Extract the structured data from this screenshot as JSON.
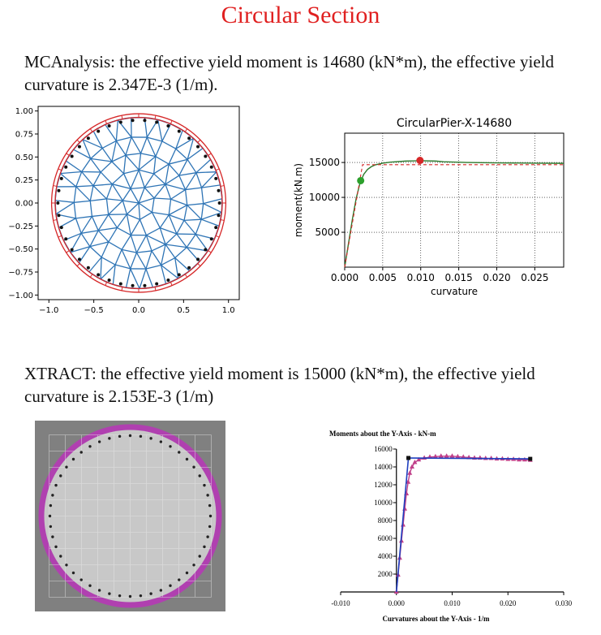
{
  "page_title": "Circular Section",
  "mcanalysis_text": "MCAnalysis: the effective yield moment is 14680 (kN*m), the effective yield curvature is 2.347E-3 (1/m).",
  "xtract_text": "XTRACT: the effective yield moment is 15000 (kN*m), the effective yield curvature is 2.153E-3 (1/m)",
  "colors": {
    "title": "#e02020",
    "mesh": "#2e74b5",
    "cover": "#d62728",
    "rebar": "#111111",
    "curve": "#2d7a2d",
    "bilinear": "#d62728",
    "yield_marker": "#2ca02c",
    "peak_marker": "#d62728",
    "xtract_bg": "#808080",
    "xtract_core": "#c8c8c8",
    "xtract_cover": "#b040b0",
    "xtract_curve": "#c0408a",
    "xtract_bilinear": "#1f3fbf"
  },
  "chart_data": [
    {
      "type": "scatter",
      "name_id": "mc-section-mesh",
      "title": "",
      "xlim": [
        -1.12,
        1.12
      ],
      "ylim": [
        -1.05,
        1.05
      ],
      "xticks": [
        "−1.0",
        "−0.5",
        "0.0",
        "0.5",
        "1.0"
      ],
      "xtick_values": [
        -1.0,
        -0.5,
        0.0,
        0.5,
        1.0
      ],
      "yticks": [
        "1.00",
        "0.75",
        "0.50",
        "0.25",
        "0.00",
        "−0.25",
        "−0.50",
        "−0.75",
        "−1.00"
      ],
      "ytick_values": [
        1.0,
        0.75,
        0.5,
        0.25,
        0.0,
        -0.25,
        -0.5,
        -0.75,
        -1.0
      ],
      "core_radius": 0.93,
      "cover_radius": 0.97,
      "rebar_radius": 0.9,
      "rebar_count": 42,
      "cover_segments": 32
    },
    {
      "type": "line",
      "name_id": "mc-moment-curvature",
      "title": "CircularPier-X-14680",
      "xlabel": "curvature",
      "ylabel": "moment(kN.m)",
      "xlim": [
        0,
        0.0288
      ],
      "ylim": [
        0,
        19200
      ],
      "xticks": [
        "0.000",
        "0.005",
        "0.010",
        "0.015",
        "0.020",
        "0.025"
      ],
      "xtick_values": [
        0,
        0.005,
        0.01,
        0.015,
        0.02,
        0.025
      ],
      "yticks": [
        "5000",
        "10000",
        "15000"
      ],
      "ytick_values": [
        5000,
        10000,
        15000
      ],
      "grid": true,
      "series": [
        {
          "x": [
            0,
            0.0005,
            0.001,
            0.0015,
            0.002,
            0.0025,
            0.003,
            0.0035,
            0.004,
            0.005,
            0.006,
            0.008,
            0.01,
            0.012,
            0.013,
            0.016,
            0.02,
            0.025,
            0.0288
          ],
          "y": [
            0,
            3400,
            6800,
            9800,
            12000,
            13300,
            14000,
            14400,
            14650,
            14900,
            15050,
            15200,
            15250,
            15200,
            15100,
            15000,
            14950,
            14900,
            14880
          ]
        },
        {
          "x": [
            0,
            0.002347,
            0.0288
          ],
          "y": [
            0,
            14680,
            14680
          ]
        }
      ],
      "markers": [
        {
          "x": 0.0021,
          "y": 12400,
          "color": "yield_marker"
        },
        {
          "x": 0.0099,
          "y": 15300,
          "color": "peak_marker"
        }
      ]
    },
    {
      "type": "scatter",
      "name_id": "xtract-section",
      "title": "",
      "rebar_count": 48
    },
    {
      "type": "line",
      "name_id": "xtract-moment-curvature",
      "title": "Moments about the Y-Axis - kN-m",
      "xlabel": "Curvatures about the Y-Axis - 1/m",
      "ylabel": "",
      "xlim": [
        -0.01,
        0.03
      ],
      "ylim": [
        0,
        16000
      ],
      "xticks": [
        "-0.010",
        "0.000",
        "0.010",
        "0.020",
        "0.030"
      ],
      "xtick_values": [
        -0.01,
        0.0,
        0.01,
        0.02,
        0.03
      ],
      "yticks": [
        "2000",
        "4000",
        "6000",
        "8000",
        "10000",
        "12000",
        "14000",
        "16000"
      ],
      "ytick_values": [
        2000,
        4000,
        6000,
        8000,
        10000,
        12000,
        14000,
        16000
      ],
      "series": [
        {
          "x": [
            0,
            0.0003,
            0.0006,
            0.0009,
            0.0012,
            0.0015,
            0.0018,
            0.0021,
            0.0024,
            0.0028,
            0.0033,
            0.004,
            0.005,
            0.006,
            0.007,
            0.008,
            0.009,
            0.01,
            0.011,
            0.012,
            0.013,
            0.014,
            0.015,
            0.016,
            0.017,
            0.018,
            0.019,
            0.02,
            0.021,
            0.022,
            0.023,
            0.024
          ],
          "y": [
            0,
            1900,
            3800,
            5700,
            7500,
            9300,
            11000,
            12300,
            13300,
            14000,
            14500,
            14800,
            15000,
            15100,
            15150,
            15200,
            15200,
            15200,
            15150,
            15100,
            15050,
            15000,
            15000,
            14950,
            14950,
            14900,
            14900,
            14850,
            14850,
            14800,
            14800,
            14750
          ]
        },
        {
          "x": [
            0,
            0.002153,
            0.024
          ],
          "y": [
            0,
            15000,
            14900
          ]
        }
      ]
    }
  ]
}
